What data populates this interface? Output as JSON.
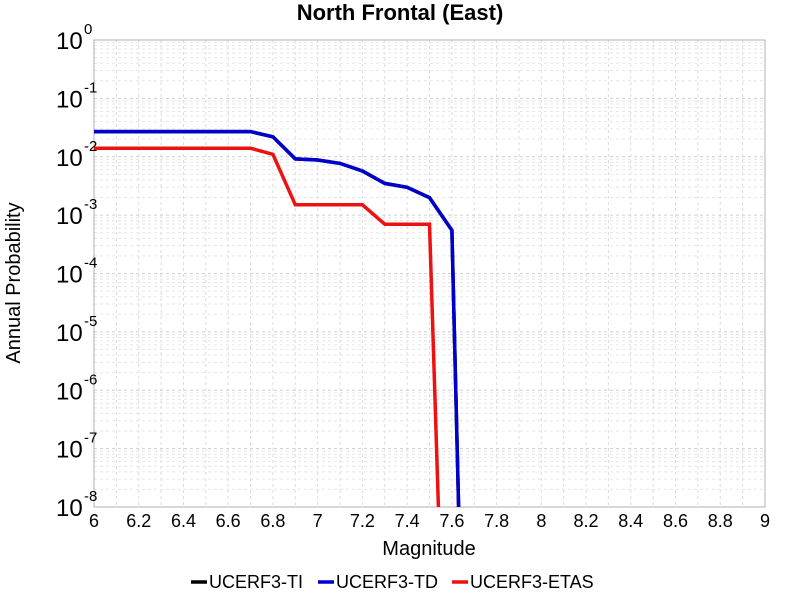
{
  "chart_data": {
    "type": "line",
    "title": "North Frontal  (East)",
    "xlabel": "Magnitude",
    "ylabel": "Annual Probability",
    "xlim": [
      6,
      9
    ],
    "ylim": [
      1e-08,
      1
    ],
    "yscale": "log",
    "grid": true,
    "legend_position": "bottom",
    "x_ticks": [
      "6",
      "6.2",
      "6.4",
      "6.6",
      "6.8",
      "7",
      "7.2",
      "7.4",
      "7.6",
      "7.8",
      "8",
      "8.2",
      "8.4",
      "8.6",
      "8.8",
      "9"
    ],
    "y_ticks": [
      {
        "base": "10",
        "exp": "0"
      },
      {
        "base": "10",
        "exp": "-1"
      },
      {
        "base": "10",
        "exp": "-2"
      },
      {
        "base": "10",
        "exp": "-3"
      },
      {
        "base": "10",
        "exp": "-4"
      },
      {
        "base": "10",
        "exp": "-5"
      },
      {
        "base": "10",
        "exp": "-6"
      },
      {
        "base": "10",
        "exp": "-7"
      },
      {
        "base": "10",
        "exp": "-8"
      }
    ],
    "series": [
      {
        "name": "UCERF3-TI",
        "color": "#000000",
        "x": [
          6.0,
          6.1,
          6.2,
          6.3,
          6.4,
          6.5,
          6.6,
          6.7,
          6.8,
          6.9,
          7.0,
          7.1,
          7.2,
          7.3,
          7.4,
          7.5,
          7.6,
          7.63
        ],
        "y": [
          0.027,
          0.027,
          0.027,
          0.027,
          0.027,
          0.027,
          0.027,
          0.027,
          0.022,
          0.0092,
          0.0088,
          0.0077,
          0.0057,
          0.0035,
          0.003,
          0.002,
          0.00055,
          1e-08
        ]
      },
      {
        "name": "UCERF3-TD",
        "color": "#0000cc",
        "x": [
          6.0,
          6.1,
          6.2,
          6.3,
          6.4,
          6.5,
          6.6,
          6.7,
          6.8,
          6.9,
          7.0,
          7.1,
          7.2,
          7.3,
          7.4,
          7.5,
          7.6,
          7.63
        ],
        "y": [
          0.027,
          0.027,
          0.027,
          0.027,
          0.027,
          0.027,
          0.027,
          0.027,
          0.022,
          0.0092,
          0.0088,
          0.0077,
          0.0057,
          0.0035,
          0.003,
          0.002,
          0.00055,
          1e-08
        ]
      },
      {
        "name": "UCERF3-ETAS",
        "color": "#ee1111",
        "x": [
          6.0,
          6.1,
          6.2,
          6.3,
          6.4,
          6.5,
          6.6,
          6.7,
          6.8,
          6.9,
          7.0,
          7.1,
          7.2,
          7.3,
          7.4,
          7.5,
          7.54
        ],
        "y": [
          0.014,
          0.014,
          0.014,
          0.014,
          0.014,
          0.014,
          0.014,
          0.014,
          0.011,
          0.0015,
          0.0015,
          0.0015,
          0.0015,
          0.0007,
          0.0007,
          0.0007,
          1e-08
        ]
      }
    ]
  }
}
